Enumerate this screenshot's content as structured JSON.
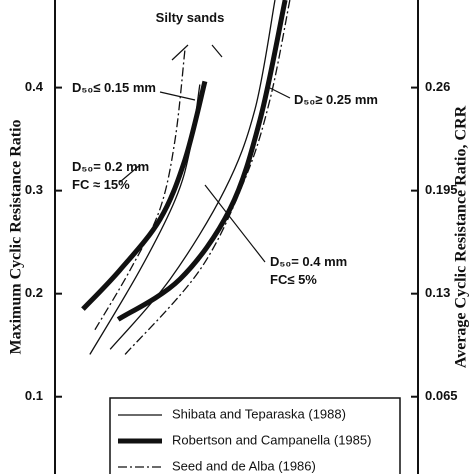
{
  "chart_data": {
    "type": "line",
    "y_label": "Maximum Cyclic Resistance Ratio",
    "y2_label": "Average Cyclic Resistance Ratio, CRR",
    "xlim": [
      0,
      100
    ],
    "ylim": [
      0.025,
      0.485
    ],
    "yticks": [
      0.1,
      0.2,
      0.3,
      0.4
    ],
    "y2lim": [
      0.01625,
      0.31525
    ],
    "y2ticks": [
      0.065,
      0.13,
      0.195,
      0.26
    ],
    "annotations": [
      "Silty sands",
      "D₅₀≤ 0.15 mm",
      "D₅₀≥ 0.25 mm",
      "D₅₀= 0.2 mm",
      "FC ≈ 15%",
      "D₅₀= 0.4 mm",
      "FC≤ 5%"
    ],
    "series": [
      {
        "name": "Shibata and Teparaska (1988)",
        "color": "#111",
        "style": "thin",
        "curves": [
          {
            "x": [
              9.6,
              23.4,
              33.1,
              37.2,
              39.9
            ],
            "y": [
              0.141,
              0.223,
              0.291,
              0.34,
              0.403
            ]
          },
          {
            "x": [
              15.2,
              31.7,
              46.8,
              55.1,
              60.6
            ],
            "y": [
              0.146,
              0.214,
              0.301,
              0.379,
              0.485
            ]
          }
        ]
      },
      {
        "name": "Robertson and Campanella (1985)",
        "color": "#111",
        "style": "thick",
        "curves": [
          {
            "x": [
              7.7,
              17.9,
              28.9,
              35.8,
              41.3
            ],
            "y": [
              0.185,
              0.223,
              0.272,
              0.33,
              0.406
            ]
          },
          {
            "x": [
              17.4,
              34.4,
              48.2,
              56.5,
              63.4
            ],
            "y": [
              0.175,
              0.214,
              0.282,
              0.369,
              0.485
            ]
          }
        ]
      },
      {
        "name": "Seed and  de Alba (1986)",
        "color": "#111",
        "style": "dashdot",
        "curves": [
          {
            "x": [
              11.0,
              20.7,
              28.9,
              33.1,
              35.8
            ],
            "y": [
              0.165,
              0.223,
              0.282,
              0.35,
              0.437
            ]
          },
          {
            "x": [
              19.3,
              39.9,
              52.3,
              59.2,
              64.7
            ],
            "y": [
              0.141,
              0.223,
              0.311,
              0.388,
              0.485
            ]
          }
        ]
      }
    ]
  }
}
